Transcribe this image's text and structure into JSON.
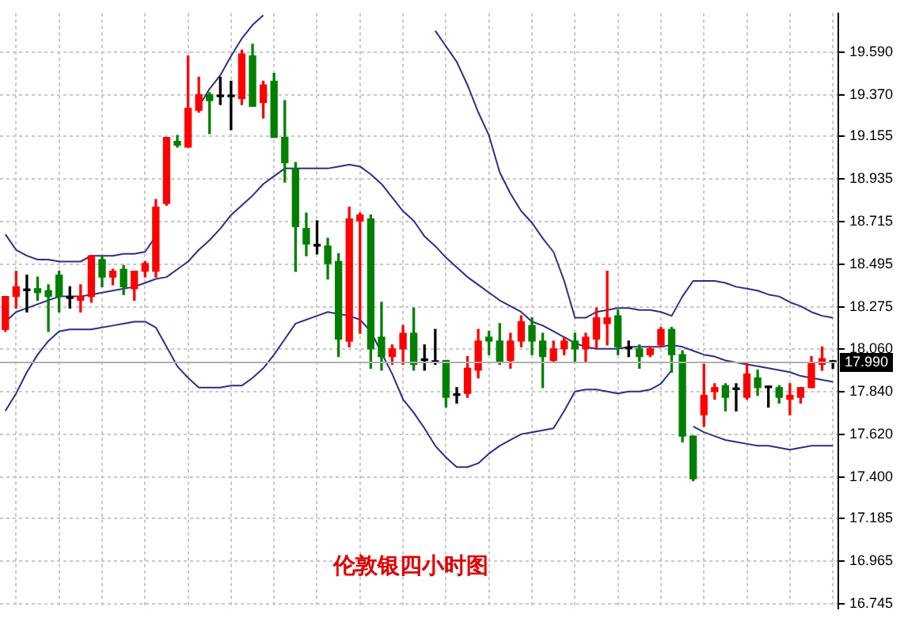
{
  "chart_data": {
    "type": "candlestick",
    "title": "伦敦银四小时图",
    "categories": [
      null,
      null,
      null,
      null,
      null,
      null,
      null,
      null,
      null,
      null,
      null,
      null,
      null,
      null,
      null,
      null,
      null,
      null,
      null,
      null,
      null,
      null,
      null,
      null,
      null,
      null,
      null,
      null,
      null,
      null,
      null,
      null,
      null,
      null,
      null,
      null,
      null,
      null,
      null,
      null,
      null,
      null,
      null,
      null,
      null,
      null,
      null,
      null,
      null,
      null,
      null,
      null,
      null,
      null,
      null,
      null,
      null,
      null,
      null,
      null,
      null,
      null,
      null,
      null,
      null,
      null,
      null,
      null,
      null,
      null,
      null,
      null,
      null,
      null,
      null,
      null,
      null,
      null
    ],
    "ohlc": [
      [
        18.16,
        18.33,
        18.15,
        18.33
      ],
      [
        18.33,
        18.46,
        18.27,
        18.38
      ],
      [
        18.36,
        18.44,
        18.25,
        18.36
      ],
      [
        18.37,
        18.43,
        18.31,
        18.35
      ],
      [
        18.36,
        18.39,
        18.15,
        18.33
      ],
      [
        18.44,
        18.46,
        18.25,
        18.33
      ],
      [
        18.32,
        18.38,
        18.27,
        18.32
      ],
      [
        18.31,
        18.39,
        18.25,
        18.33
      ],
      [
        18.33,
        18.54,
        18.3,
        18.54
      ],
      [
        18.52,
        18.54,
        18.38,
        18.43
      ],
      [
        18.43,
        18.47,
        18.39,
        18.46
      ],
      [
        18.47,
        18.49,
        18.34,
        18.38
      ],
      [
        18.37,
        18.46,
        18.31,
        18.46
      ],
      [
        18.46,
        18.51,
        18.43,
        18.5
      ],
      [
        18.46,
        18.83,
        18.43,
        18.79
      ],
      [
        18.81,
        19.15,
        18.8,
        19.15
      ],
      [
        19.13,
        19.16,
        19.1,
        19.11
      ],
      [
        19.1,
        19.57,
        19.1,
        19.3
      ],
      [
        19.29,
        19.46,
        19.28,
        19.37
      ],
      [
        19.37,
        19.38,
        19.17,
        19.34
      ],
      [
        19.36,
        19.46,
        19.32,
        19.36
      ],
      [
        19.36,
        19.44,
        19.19,
        19.36
      ],
      [
        19.35,
        19.6,
        19.32,
        19.58
      ],
      [
        19.57,
        19.63,
        19.31,
        19.31
      ],
      [
        19.33,
        19.44,
        19.25,
        19.42
      ],
      [
        19.44,
        19.48,
        19.15,
        19.15
      ],
      [
        19.15,
        19.34,
        18.92,
        19.02
      ],
      [
        18.99,
        19.02,
        18.46,
        18.69
      ],
      [
        18.68,
        18.76,
        18.54,
        18.6
      ],
      [
        18.59,
        18.72,
        18.55,
        18.59
      ],
      [
        18.59,
        18.63,
        18.42,
        18.5
      ],
      [
        18.51,
        18.55,
        18.02,
        18.11
      ],
      [
        18.1,
        18.79,
        18.07,
        18.73
      ],
      [
        18.72,
        18.76,
        18.14,
        18.75
      ],
      [
        18.73,
        18.75,
        17.96,
        18.06
      ],
      [
        18.12,
        18.3,
        17.95,
        18.02
      ],
      [
        18.02,
        18.08,
        17.98,
        18.06
      ],
      [
        18.06,
        18.18,
        17.98,
        18.14
      ],
      [
        18.14,
        18.27,
        17.95,
        17.98
      ],
      [
        18.0,
        18.08,
        17.95,
        18.0
      ],
      [
        17.99,
        18.16,
        17.98,
        17.99
      ],
      [
        18.0,
        18.0,
        17.76,
        17.81
      ],
      [
        17.82,
        17.86,
        17.78,
        17.82
      ],
      [
        17.83,
        18.02,
        17.81,
        17.96
      ],
      [
        17.95,
        18.16,
        17.91,
        18.1
      ],
      [
        18.12,
        18.15,
        18.03,
        18.1
      ],
      [
        18.1,
        18.19,
        17.98,
        17.99
      ],
      [
        18.0,
        18.14,
        17.96,
        18.1
      ],
      [
        18.1,
        18.23,
        18.07,
        18.2
      ],
      [
        18.18,
        18.22,
        18.03,
        18.1
      ],
      [
        18.1,
        18.14,
        17.86,
        18.02
      ],
      [
        18.0,
        18.1,
        17.99,
        18.06
      ],
      [
        18.06,
        18.12,
        18.03,
        18.1
      ],
      [
        18.1,
        18.14,
        17.99,
        18.06
      ],
      [
        18.06,
        18.14,
        17.99,
        18.12
      ],
      [
        18.11,
        18.27,
        18.06,
        18.22
      ],
      [
        18.19,
        18.46,
        18.08,
        18.22
      ],
      [
        18.23,
        18.26,
        18.03,
        18.07
      ],
      [
        18.06,
        18.1,
        18.02,
        18.06
      ],
      [
        18.06,
        18.08,
        17.96,
        18.02
      ],
      [
        18.03,
        18.07,
        18.02,
        18.06
      ],
      [
        18.08,
        18.17,
        18.07,
        18.16
      ],
      [
        18.16,
        18.17,
        17.94,
        18.03
      ],
      [
        18.03,
        18.05,
        17.58,
        17.61
      ],
      [
        17.61,
        17.61,
        17.38,
        17.39
      ],
      [
        17.72,
        17.98,
        17.66,
        17.82
      ],
      [
        17.84,
        17.88,
        17.8,
        17.86
      ],
      [
        17.87,
        17.88,
        17.74,
        17.81
      ],
      [
        17.85,
        17.88,
        17.74,
        17.85
      ],
      [
        17.81,
        17.99,
        17.8,
        17.93
      ],
      [
        17.91,
        17.95,
        17.82,
        17.86
      ],
      [
        17.86,
        17.86,
        17.76,
        17.86
      ],
      [
        17.86,
        17.87,
        17.78,
        17.81
      ],
      [
        17.8,
        17.88,
        17.72,
        17.82
      ],
      [
        17.81,
        17.86,
        17.78,
        17.86
      ],
      [
        17.86,
        18.02,
        17.86,
        17.99
      ],
      [
        17.98,
        18.07,
        17.95,
        18.01
      ],
      [
        17.99,
        18.0,
        17.96,
        17.99
      ]
    ],
    "colors": [
      "#ff0000",
      "#ff0000",
      "#000000",
      "#008000",
      "#008000",
      "#008000",
      "#000000",
      "#ff0000",
      "#ff0000",
      "#008000",
      "#ff0000",
      "#008000",
      "#ff0000",
      "#ff0000",
      "#ff0000",
      "#ff0000",
      "#008000",
      "#ff0000",
      "#ff0000",
      "#008000",
      "#000000",
      "#000000",
      "#ff0000",
      "#008000",
      "#ff0000",
      "#008000",
      "#008000",
      "#008000",
      "#008000",
      "#000000",
      "#008000",
      "#008000",
      "#ff0000",
      "#ff0000",
      "#008000",
      "#008000",
      "#ff0000",
      "#ff0000",
      "#008000",
      "#000000",
      "#000000",
      "#008000",
      "#000000",
      "#ff0000",
      "#ff0000",
      "#008000",
      "#008000",
      "#ff0000",
      "#ff0000",
      "#008000",
      "#008000",
      "#ff0000",
      "#ff0000",
      "#008000",
      "#ff0000",
      "#ff0000",
      "#ff0000",
      "#008000",
      "#000000",
      "#008000",
      "#ff0000",
      "#ff0000",
      "#008000",
      "#008000",
      "#008000",
      "#ff0000",
      "#ff0000",
      "#008000",
      "#000000",
      "#ff0000",
      "#008000",
      "#000000",
      "#008000",
      "#ff0000",
      "#ff0000",
      "#ff0000",
      "#ff0000",
      "#000000"
    ],
    "series": [
      {
        "type": "line",
        "color": "#2e2e8a",
        "values": [
          18.65,
          18.57,
          18.54,
          18.52,
          18.52,
          18.51,
          18.51,
          18.51,
          18.54,
          18.54,
          18.54,
          18.55,
          18.55,
          18.56,
          18.64,
          null,
          null,
          null,
          19.31,
          19.4,
          19.47,
          19.57,
          19.66,
          19.73,
          19.78,
          null,
          null,
          null,
          null,
          null,
          null,
          null,
          null,
          null,
          null,
          null,
          null,
          null,
          null,
          null,
          19.7,
          19.62,
          19.54,
          19.42,
          19.28,
          19.16,
          18.97,
          18.86,
          18.77,
          18.71,
          18.63,
          18.56,
          18.41,
          18.22,
          18.22,
          18.25,
          18.26,
          18.27,
          18.27,
          18.26,
          18.26,
          18.25,
          18.23,
          18.33,
          18.41,
          18.41,
          18.41,
          18.4,
          18.38,
          18.37,
          18.36,
          18.34,
          18.33,
          18.3,
          18.28,
          18.25,
          18.23,
          18.22
        ]
      },
      {
        "type": "line",
        "color": "#2e2e8a",
        "values": [
          18.2,
          18.25,
          18.27,
          18.29,
          18.31,
          18.33,
          18.33,
          18.33,
          18.34,
          18.35,
          18.36,
          18.37,
          18.38,
          18.4,
          18.42,
          18.43,
          18.47,
          18.51,
          18.57,
          18.62,
          18.68,
          18.75,
          18.8,
          18.85,
          18.91,
          18.95,
          18.99,
          18.99,
          18.99,
          18.99,
          18.99,
          19.0,
          19.01,
          19.0,
          18.96,
          18.91,
          18.84,
          18.77,
          18.72,
          18.64,
          18.59,
          18.53,
          18.48,
          18.43,
          18.39,
          18.35,
          18.31,
          18.28,
          18.25,
          18.2,
          18.18,
          18.15,
          18.12,
          18.09,
          18.07,
          18.06,
          18.06,
          18.06,
          18.07,
          18.07,
          18.07,
          18.07,
          18.08,
          18.07,
          18.05,
          18.03,
          18.02,
          18.0,
          17.99,
          17.98,
          17.97,
          17.96,
          17.95,
          17.94,
          17.92,
          17.91,
          17.9,
          17.89
        ]
      },
      {
        "type": "line",
        "color": "#2e2e8a",
        "values": [
          17.74,
          17.83,
          17.94,
          18.03,
          18.1,
          18.15,
          18.16,
          18.16,
          18.16,
          18.17,
          18.18,
          18.19,
          18.2,
          18.2,
          18.17,
          18.07,
          17.97,
          17.91,
          17.86,
          17.86,
          17.86,
          17.87,
          17.87,
          17.91,
          17.96,
          18.03,
          18.11,
          18.19,
          18.21,
          18.23,
          18.25,
          18.24,
          18.23,
          18.21,
          18.15,
          18.04,
          17.93,
          17.8,
          17.73,
          17.65,
          17.56,
          17.5,
          17.45,
          17.45,
          17.47,
          17.52,
          17.56,
          17.59,
          17.62,
          17.63,
          17.64,
          17.65,
          17.74,
          17.84,
          17.85,
          17.85,
          17.84,
          17.83,
          17.84,
          17.84,
          17.85,
          17.88,
          17.95,
          null,
          17.66,
          17.63,
          17.61,
          17.59,
          17.58,
          17.57,
          17.56,
          17.56,
          17.55,
          17.54,
          17.55,
          17.56,
          17.56,
          17.56
        ]
      }
    ],
    "ylim": [
      16.72,
      19.79
    ],
    "yticks": [
      {
        "value": 16.745,
        "label": "16.745"
      },
      {
        "value": 16.965,
        "label": "16.965"
      },
      {
        "value": 17.185,
        "label": "17.185"
      },
      {
        "value": 17.4,
        "label": "17.400"
      },
      {
        "value": 17.62,
        "label": "17.620"
      },
      {
        "value": 17.84,
        "label": "17.840"
      },
      {
        "value": 18.06,
        "label": "18.060"
      },
      {
        "value": 18.275,
        "label": "18.275"
      },
      {
        "value": 18.495,
        "label": "18.495"
      },
      {
        "value": 18.715,
        "label": "18.715"
      },
      {
        "value": 18.935,
        "label": "18.935"
      },
      {
        "value": 19.155,
        "label": "19.155"
      },
      {
        "value": 19.37,
        "label": "19.370"
      },
      {
        "value": 19.59,
        "label": "19.590"
      }
    ],
    "ref_lines": [
      {
        "axis": "y",
        "value": 17.99,
        "label": "17.990"
      }
    ],
    "grid": true,
    "legend": false,
    "tick_labels": "y"
  }
}
